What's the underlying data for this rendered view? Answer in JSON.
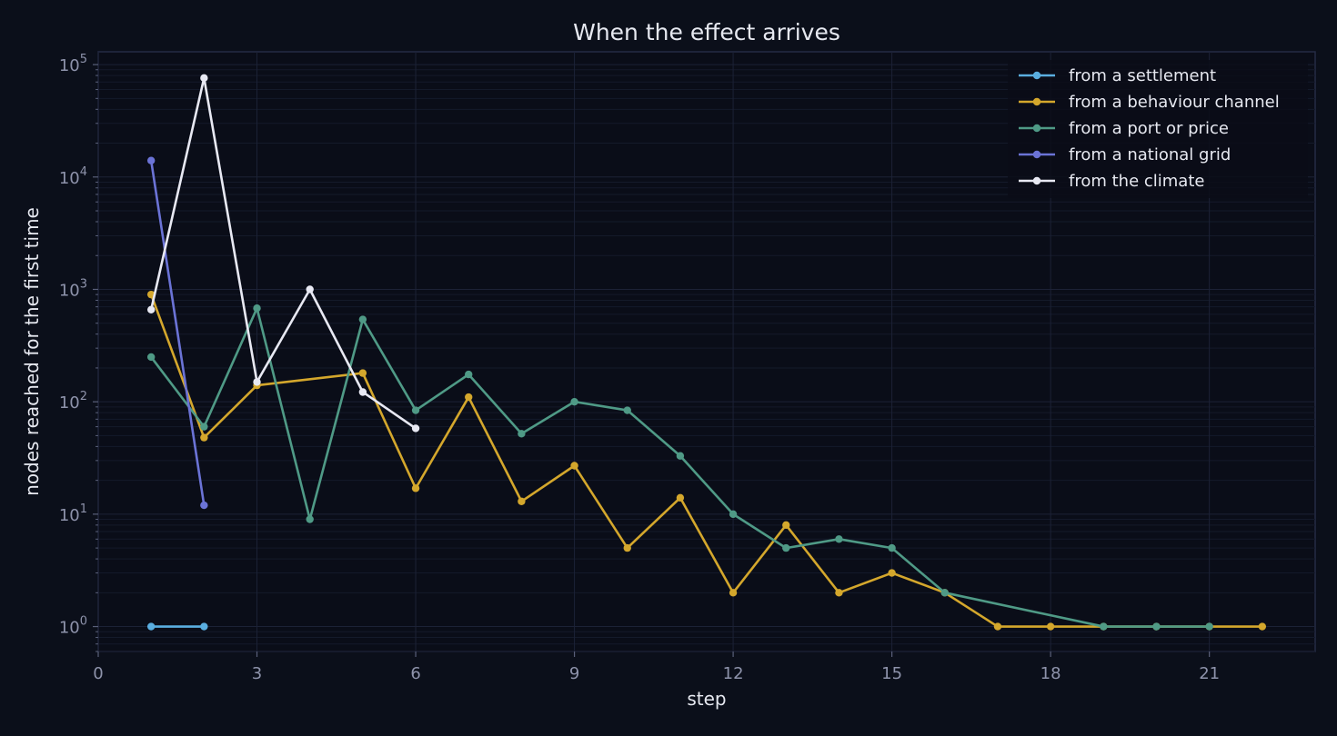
{
  "chart_data": {
    "type": "line",
    "title": "When the effect arrives",
    "xlabel": "step",
    "ylabel": "nodes reached for the first time",
    "yscale": "log",
    "xlim": [
      0,
      23
    ],
    "ylim": [
      0.6,
      130000
    ],
    "xticks": [
      0,
      3,
      6,
      9,
      12,
      15,
      18,
      21
    ],
    "yticks": [
      {
        "value": 1,
        "base": "10",
        "exp": "0"
      },
      {
        "value": 10,
        "base": "10",
        "exp": "1"
      },
      {
        "value": 100,
        "base": "10",
        "exp": "2"
      },
      {
        "value": 1000,
        "base": "10",
        "exp": "3"
      },
      {
        "value": 10000,
        "base": "10",
        "exp": "4"
      },
      {
        "value": 100000,
        "base": "10",
        "exp": "5"
      }
    ],
    "grid": true,
    "legend_position": "top-right",
    "series": [
      {
        "name": "from a settlement",
        "color": "#5aaee0",
        "x": [
          1,
          2
        ],
        "y": [
          1,
          1
        ]
      },
      {
        "name": "from a behaviour channel",
        "color": "#d4a72c",
        "x": [
          1,
          2,
          3,
          5,
          6,
          7,
          8,
          9,
          10,
          11,
          12,
          13,
          14,
          15,
          16,
          17,
          18,
          19,
          20,
          21,
          22
        ],
        "y": [
          900,
          48,
          140,
          180,
          17,
          110,
          13,
          27,
          5,
          14,
          2,
          8,
          2,
          3,
          2,
          1,
          1,
          1,
          1,
          1,
          1
        ]
      },
      {
        "name": "from a port or price",
        "color": "#4f9a86",
        "x": [
          1,
          2,
          3,
          4,
          5,
          6,
          7,
          8,
          9,
          10,
          11,
          12,
          13,
          14,
          15,
          16,
          19,
          20,
          21
        ],
        "y": [
          250,
          60,
          680,
          9,
          540,
          84,
          175,
          52,
          100,
          84,
          33,
          10,
          5,
          6,
          5,
          2,
          1,
          1,
          1
        ]
      },
      {
        "name": "from a national grid",
        "color": "#6b73d6",
        "x": [
          1,
          2
        ],
        "y": [
          14000,
          12
        ]
      },
      {
        "name": "from the climate",
        "color": "#e8e9f3",
        "x": [
          1,
          2,
          3,
          4,
          5,
          6
        ],
        "y": [
          660,
          76000,
          150,
          1000,
          122,
          58
        ]
      }
    ]
  }
}
